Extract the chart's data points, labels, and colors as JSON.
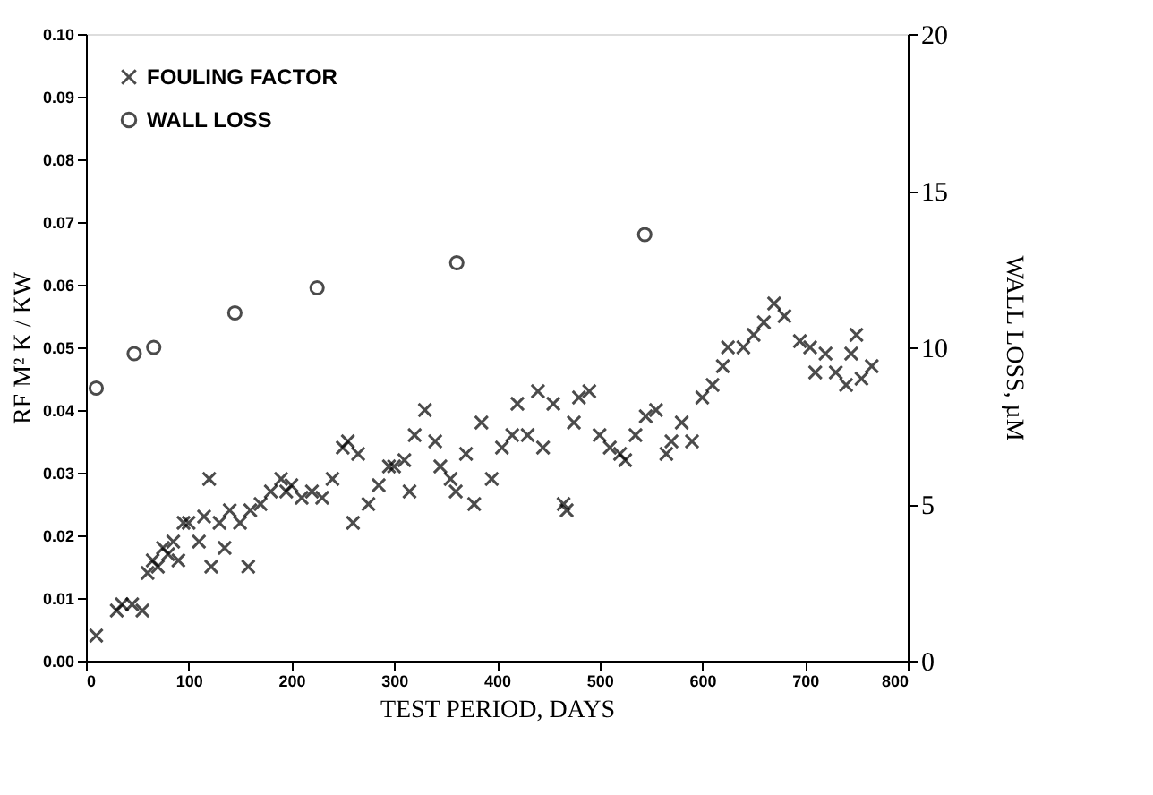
{
  "chart_data": {
    "type": "scatter",
    "xlabel": "TEST PERIOD, DAYS",
    "ylabel": "RF M² K / KW",
    "y2label": "WALL LOSS, µM",
    "xlim": [
      0,
      800
    ],
    "xticks": [
      0,
      100,
      200,
      300,
      400,
      500,
      600,
      700,
      800
    ],
    "ylim": [
      0,
      0.1
    ],
    "yticks": [
      {
        "value": 0,
        "label": "0.00"
      },
      {
        "value": 0.01,
        "label": "0.01"
      },
      {
        "value": 0.02,
        "label": "0.02"
      },
      {
        "value": 0.03,
        "label": "0.03"
      },
      {
        "value": 0.04,
        "label": "0.04"
      },
      {
        "value": 0.05,
        "label": "0.05"
      },
      {
        "value": 0.06,
        "label": "0.06"
      },
      {
        "value": 0.07,
        "label": "0.07"
      },
      {
        "value": 0.08,
        "label": "0.08"
      },
      {
        "value": 0.09,
        "label": "0.09"
      },
      {
        "value": 0.1,
        "label": "0.10"
      }
    ],
    "y2lim": [
      0,
      20
    ],
    "y2ticks": [
      0,
      5,
      10,
      15,
      20
    ],
    "grid": false,
    "legend": "top left",
    "series": [
      {
        "name": "FOULING FACTOR",
        "color": "#000000",
        "marker": "cross",
        "x": [
          10,
          30,
          35,
          45,
          55,
          60,
          65,
          70,
          75,
          80,
          85,
          90,
          95,
          100,
          110,
          115,
          120,
          122,
          130,
          135,
          140,
          150,
          158,
          160,
          170,
          180,
          190,
          195,
          200,
          210,
          220,
          230,
          240,
          250,
          255,
          260,
          265,
          275,
          285,
          295,
          300,
          310,
          315,
          320,
          330,
          340,
          345,
          355,
          360,
          370,
          378,
          385,
          395,
          405,
          415,
          420,
          430,
          440,
          445,
          455,
          465,
          468,
          475,
          480,
          490,
          500,
          510,
          520,
          525,
          535,
          545,
          555,
          565,
          570,
          580,
          590,
          600,
          610,
          620,
          625,
          640,
          650,
          660,
          670,
          680,
          695,
          705,
          710,
          720,
          730,
          740,
          745,
          750,
          755,
          765
        ],
        "values": [
          0.004,
          0.008,
          0.009,
          0.009,
          0.008,
          0.014,
          0.016,
          0.015,
          0.018,
          0.017,
          0.019,
          0.016,
          0.022,
          0.022,
          0.019,
          0.023,
          0.029,
          0.015,
          0.022,
          0.018,
          0.024,
          0.022,
          0.015,
          0.024,
          0.025,
          0.027,
          0.029,
          0.027,
          0.028,
          0.026,
          0.027,
          0.026,
          0.029,
          0.034,
          0.035,
          0.022,
          0.033,
          0.025,
          0.028,
          0.031,
          0.031,
          0.032,
          0.027,
          0.036,
          0.04,
          0.035,
          0.031,
          0.029,
          0.027,
          0.033,
          0.025,
          0.038,
          0.029,
          0.034,
          0.036,
          0.041,
          0.036,
          0.043,
          0.034,
          0.041,
          0.025,
          0.024,
          0.038,
          0.042,
          0.043,
          0.036,
          0.034,
          0.033,
          0.032,
          0.036,
          0.039,
          0.04,
          0.033,
          0.035,
          0.038,
          0.035,
          0.042,
          0.044,
          0.047,
          0.05,
          0.05,
          0.052,
          0.054,
          0.057,
          0.055,
          0.051,
          0.05,
          0.046,
          0.049,
          0.046,
          0.044,
          0.049,
          0.052,
          0.045,
          0.047
        ]
      },
      {
        "name": "WALL LOSS",
        "color": "#000000",
        "marker": "circle",
        "axis": "y2",
        "x": [
          10,
          47,
          66,
          145,
          225,
          361,
          544
        ],
        "values": [
          8.7,
          9.8,
          10.0,
          11.1,
          11.9,
          12.7,
          13.6
        ]
      }
    ]
  }
}
